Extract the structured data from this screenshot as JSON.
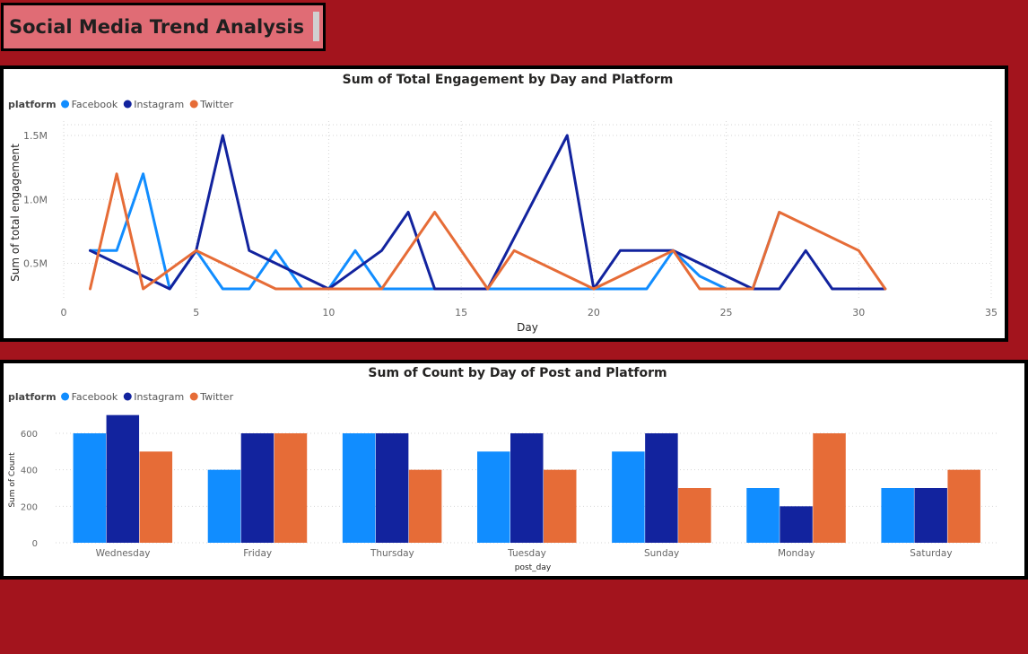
{
  "header": {
    "title": "Social Media Trend Analysis"
  },
  "colors": {
    "Facebook": "#118dff",
    "Instagram": "#12239e",
    "Twitter": "#e66c37",
    "background": "#a3141d",
    "title_bg": "#e06c75"
  },
  "chart_data": [
    {
      "type": "line",
      "title": "Sum of Total Engagement by Day and Platform",
      "legend_title": "platform",
      "legend_position": "top-left",
      "xlabel": "Day",
      "ylabel": "Sum of total engagement",
      "xlim": [
        0,
        35
      ],
      "ylim": [
        300000,
        1500000
      ],
      "x_ticks": [
        0,
        5,
        10,
        15,
        20,
        25,
        30,
        35
      ],
      "x_tick_labels": [
        "0",
        "5",
        "10",
        "15",
        "20",
        "25",
        "30",
        "35"
      ],
      "y_ticks": [
        500000,
        1000000,
        1500000
      ],
      "y_tick_labels": [
        "0.5M",
        "1.0M",
        "1.5M"
      ],
      "grid": true,
      "series": [
        {
          "name": "Facebook",
          "x": [
            1,
            2,
            3,
            4,
            5,
            6,
            7,
            8,
            9,
            10,
            11,
            12,
            13,
            14,
            15,
            16,
            17,
            18,
            19,
            20,
            21,
            22,
            23,
            24,
            25,
            26,
            27
          ],
          "values": [
            600000,
            600000,
            1200000,
            300000,
            600000,
            300000,
            300000,
            600000,
            300000,
            300000,
            600000,
            300000,
            300000,
            300000,
            300000,
            300000,
            300000,
            300000,
            300000,
            300000,
            300000,
            300000,
            600000,
            400000,
            300000,
            300000,
            900000
          ]
        },
        {
          "name": "Instagram",
          "x": [
            1,
            4,
            5,
            6,
            7,
            8,
            10,
            12,
            13,
            14,
            16,
            19,
            20,
            21,
            23,
            26,
            27,
            28,
            29,
            30,
            31
          ],
          "values": [
            600000,
            300000,
            600000,
            1500000,
            600000,
            500000,
            300000,
            600000,
            900000,
            300000,
            300000,
            1500000,
            300000,
            600000,
            600000,
            300000,
            300000,
            600000,
            300000,
            300000,
            300000
          ]
        },
        {
          "name": "Twitter",
          "x": [
            1,
            2,
            3,
            5,
            8,
            12,
            14,
            16,
            17,
            20,
            23,
            24,
            25,
            26,
            27,
            30,
            31
          ],
          "values": [
            300000,
            1200000,
            300000,
            600000,
            300000,
            300000,
            900000,
            300000,
            600000,
            300000,
            600000,
            300000,
            300000,
            300000,
            900000,
            600000,
            300000
          ]
        }
      ]
    },
    {
      "type": "bar",
      "title": "Sum of Count by Day of Post and Platform",
      "legend_title": "platform",
      "legend_position": "top-left",
      "xlabel": "post_day",
      "ylabel": "Sum of Count",
      "ylim": [
        0,
        700
      ],
      "y_ticks": [
        0,
        200,
        400,
        600
      ],
      "y_tick_labels": [
        "0",
        "200",
        "400",
        "600"
      ],
      "grid": true,
      "categories": [
        "Wednesday",
        "Friday",
        "Thursday",
        "Tuesday",
        "Sunday",
        "Monday",
        "Saturday"
      ],
      "series": [
        {
          "name": "Facebook",
          "values": [
            600,
            400,
            600,
            500,
            500,
            300,
            300
          ]
        },
        {
          "name": "Instagram",
          "values": [
            700,
            600,
            600,
            600,
            600,
            200,
            300
          ]
        },
        {
          "name": "Twitter",
          "values": [
            500,
            600,
            400,
            400,
            300,
            600,
            400
          ]
        }
      ]
    }
  ]
}
